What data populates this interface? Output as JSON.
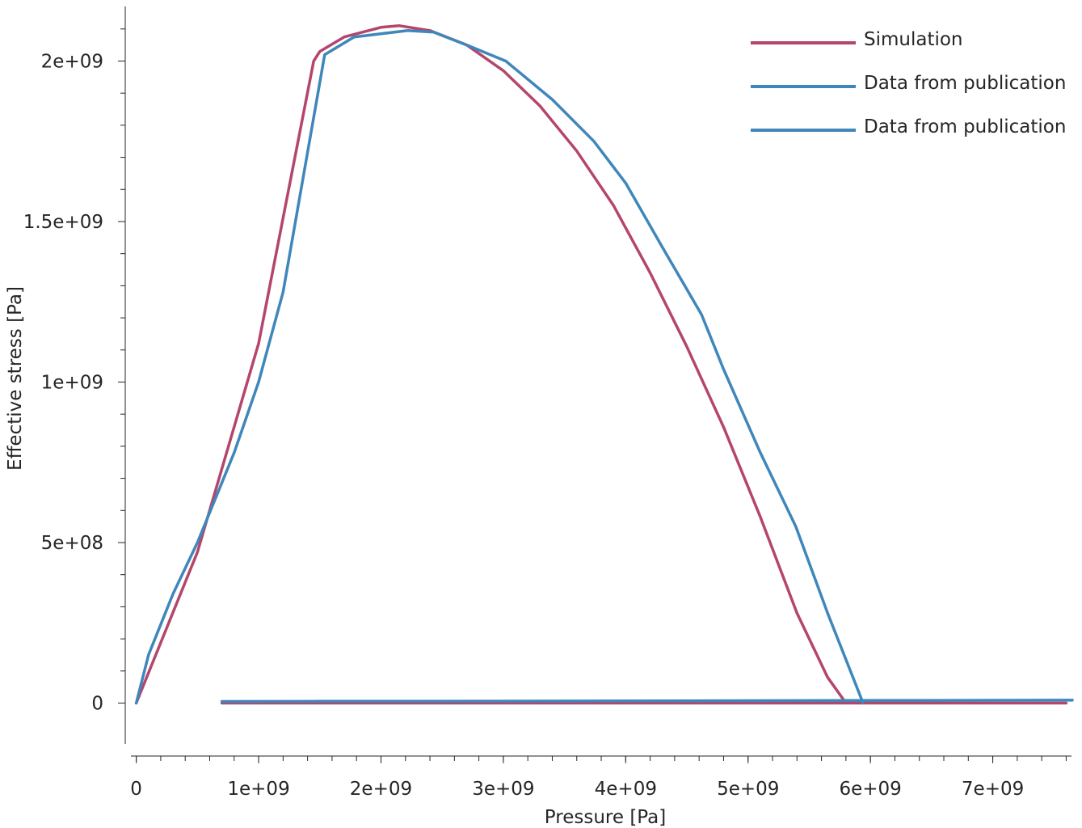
{
  "chart_data": {
    "type": "line",
    "xlabel": "Pressure [Pa]",
    "ylabel": "Effective stress [Pa]",
    "xlim": [
      -90000000,
      7650000000
    ],
    "ylim": [
      -165000000,
      2170000000
    ],
    "x_ticks": [
      {
        "value": 0,
        "label": "0"
      },
      {
        "value": 1000000000,
        "label": "1e+09"
      },
      {
        "value": 2000000000,
        "label": "2e+09"
      },
      {
        "value": 3000000000,
        "label": "3e+09"
      },
      {
        "value": 4000000000,
        "label": "4e+09"
      },
      {
        "value": 5000000000,
        "label": "5e+09"
      },
      {
        "value": 6000000000,
        "label": "6e+09"
      },
      {
        "value": 7000000000,
        "label": "7e+09"
      }
    ],
    "y_ticks": [
      {
        "value": 0,
        "label": "0"
      },
      {
        "value": 500000000,
        "label": "5e+08"
      },
      {
        "value": 1000000000,
        "label": "1e+09"
      },
      {
        "value": 1500000000,
        "label": "1.5e+09"
      },
      {
        "value": 2000000000,
        "label": "2e+09"
      }
    ],
    "grid": false,
    "legend_position": "top-right",
    "series": [
      {
        "name": "Simulation",
        "color": "#b5466b",
        "x": [
          0,
          500000000,
          1000000000,
          1450000000,
          1500000000,
          1700000000,
          2000000000,
          2150000000,
          2400000000,
          2700000000,
          3000000000,
          3300000000,
          3600000000,
          3900000000,
          4200000000,
          4500000000,
          4800000000,
          5100000000,
          5400000000,
          5650000000,
          5800000000,
          5820000000,
          6500000000,
          7000000000,
          7600000000,
          7000000000,
          5000000000,
          3000000000,
          1000000000,
          700000000
        ],
        "y": [
          0,
          470000000,
          1120000000,
          2000000000,
          2030000000,
          2075000000,
          2105000000,
          2110000000,
          2095000000,
          2050000000,
          1970000000,
          1860000000,
          1720000000,
          1550000000,
          1340000000,
          1110000000,
          860000000,
          580000000,
          280000000,
          80000000,
          0,
          0,
          0,
          0,
          0,
          0,
          0,
          0,
          0,
          0
        ]
      },
      {
        "name": "Data from publication",
        "color": "#3f87bb",
        "x": [
          0,
          100000000,
          300000000,
          500000000,
          800000000,
          1000000000,
          1200000000,
          1540000000,
          1780000000,
          2000000000,
          2220000000,
          2430000000,
          2700000000,
          3020000000,
          3400000000,
          3740000000,
          4000000000,
          4300000000,
          4620000000,
          4800000000,
          5100000000,
          5390000000,
          5650000000,
          5940000000
        ],
        "y": [
          0,
          150000000,
          340000000,
          500000000,
          780000000,
          1000000000,
          1280000000,
          2020000000,
          2075000000,
          2085000000,
          2095000000,
          2090000000,
          2050000000,
          2000000000,
          1880000000,
          1750000000,
          1620000000,
          1420000000,
          1210000000,
          1040000000,
          780000000,
          550000000,
          280000000,
          0
        ]
      },
      {
        "name": "Data from publication",
        "color": "#3f87bb",
        "x": [
          700000000,
          1500000000,
          3000000000,
          4500000000,
          6000000000,
          7650000000
        ],
        "y": [
          5000000,
          5500000,
          6000000,
          7000000,
          8000000,
          9000000
        ]
      }
    ]
  }
}
